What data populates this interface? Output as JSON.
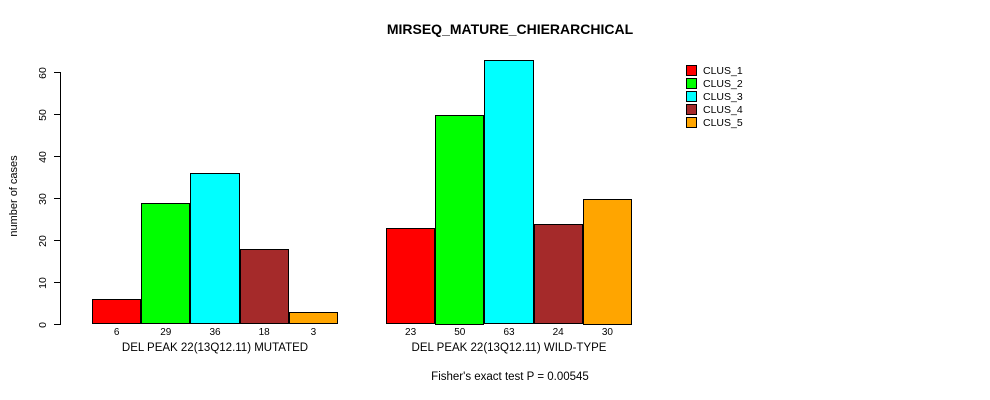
{
  "chart_data": {
    "type": "bar",
    "title": "MIRSEQ_MATURE_CHIERARCHICAL",
    "ylabel": "number of cases",
    "xlabel": "",
    "yticks": [
      0,
      10,
      20,
      30,
      40,
      50,
      60
    ],
    "ylim": [
      0,
      63
    ],
    "grid": false,
    "legend_position": "right-outside",
    "bar_border_color": "#000000",
    "categories": [
      "DEL PEAK 22(13Q12.11) MUTATED",
      "DEL PEAK 22(13Q12.11) WILD-TYPE"
    ],
    "series": [
      {
        "name": "CLUS_1",
        "color": "#FF0000",
        "values": [
          6,
          23
        ]
      },
      {
        "name": "CLUS_2",
        "color": "#00FF00",
        "values": [
          29,
          50
        ]
      },
      {
        "name": "CLUS_3",
        "color": "#00FFFF",
        "values": [
          36,
          63
        ]
      },
      {
        "name": "CLUS_4",
        "color": "#A52A2A",
        "values": [
          18,
          24
        ]
      },
      {
        "name": "CLUS_5",
        "color": "#FFA500",
        "values": [
          3,
          30
        ]
      }
    ],
    "groups": [
      {
        "label": "DEL PEAK 22(13Q12.11) MUTATED",
        "values": [
          6,
          29,
          36,
          18,
          3
        ]
      },
      {
        "label": "DEL PEAK 22(13Q12.11) WILD-TYPE",
        "values": [
          23,
          50,
          63,
          24,
          30
        ]
      }
    ],
    "bar_value_labels": [
      6,
      29,
      36,
      18,
      3,
      23,
      50,
      63,
      24,
      30
    ],
    "footnote": "Fisher's exact test P = 0.00545"
  }
}
